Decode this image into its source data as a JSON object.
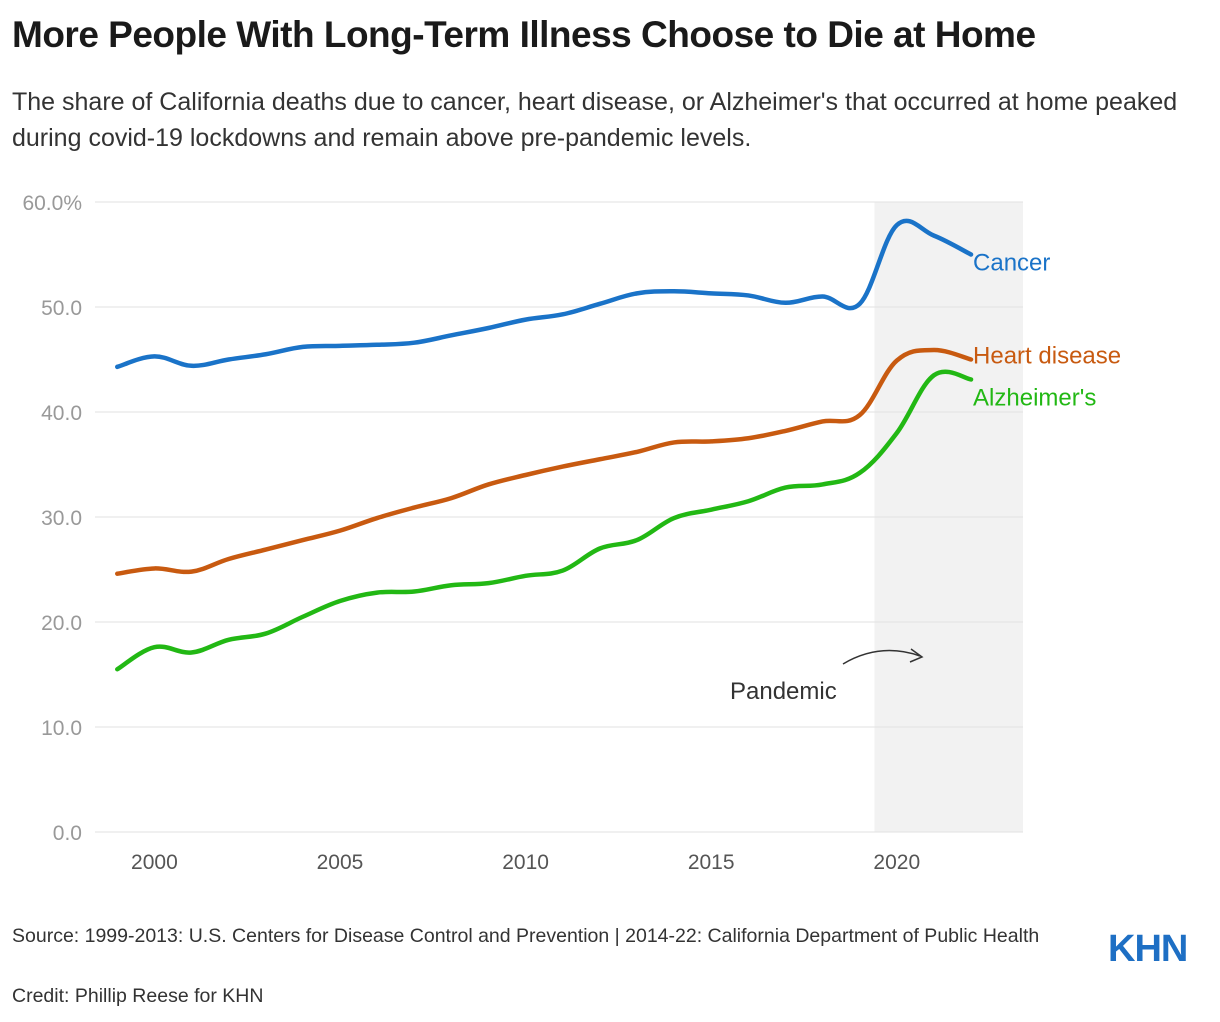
{
  "title": "More People With Long-Term Illness Choose to Die at Home",
  "subtitle": "The share of California deaths due to cancer, heart disease, or Alzheimer's that occurred at home peaked during covid-19 lockdowns and remain above pre-pandemic levels.",
  "source": "Source: 1999-2013: U.S. Centers for Disease Control and Prevention | 2014-22: California Department of Public Health",
  "credit": "Credit: Phillip Reese for KHN",
  "logo": "KHN",
  "colors": {
    "cancer": "#1a73c8",
    "heart": "#c85a10",
    "alzheimers": "#22b814",
    "shade": "#f2f2f2",
    "grid": "#e2e2e2"
  },
  "chart_data": {
    "type": "line",
    "title": "More People With Long-Term Illness Choose to Die at Home",
    "xlabel": "",
    "ylabel": "",
    "x": [
      1999,
      2000,
      2001,
      2002,
      2003,
      2004,
      2005,
      2006,
      2007,
      2008,
      2009,
      2010,
      2011,
      2012,
      2013,
      2014,
      2015,
      2016,
      2017,
      2018,
      2019,
      2020,
      2021,
      2022
    ],
    "xlim": [
      1998.4,
      2023.4
    ],
    "ylim": [
      0,
      60
    ],
    "yticks": [
      0,
      10,
      20,
      30,
      40,
      50,
      60
    ],
    "ytick_labels": [
      "0.0",
      "10.0",
      "20.0",
      "30.0",
      "40.0",
      "50.0",
      "60.0%"
    ],
    "xticks": [
      2000,
      2005,
      2010,
      2015,
      2020
    ],
    "xtick_labels": [
      "2000",
      "2005",
      "2010",
      "2015",
      "2020"
    ],
    "grid": true,
    "series": [
      {
        "key": "cancer",
        "name": "Cancer",
        "values": [
          44.3,
          45.3,
          44.4,
          45.0,
          45.5,
          46.2,
          46.3,
          46.4,
          46.6,
          47.3,
          48.0,
          48.8,
          49.3,
          50.3,
          51.3,
          51.5,
          51.3,
          51.1,
          50.4,
          51.0,
          50.3,
          57.8,
          56.8,
          55.0
        ]
      },
      {
        "key": "heart",
        "name": "Heart disease",
        "values": [
          24.6,
          25.1,
          24.8,
          26.0,
          26.9,
          27.8,
          28.7,
          29.9,
          30.9,
          31.8,
          33.1,
          34.0,
          34.8,
          35.5,
          36.2,
          37.1,
          37.2,
          37.5,
          38.2,
          39.1,
          39.7,
          44.9,
          45.9,
          45.0
        ]
      },
      {
        "key": "alzheimers",
        "name": "Alzheimer's",
        "values": [
          15.5,
          17.6,
          17.1,
          18.3,
          18.9,
          20.5,
          22.0,
          22.8,
          22.9,
          23.5,
          23.7,
          24.4,
          24.9,
          27.0,
          27.8,
          29.9,
          30.7,
          31.5,
          32.8,
          33.1,
          34.2,
          38.0,
          43.5,
          43.1
        ]
      }
    ],
    "annotations": [
      {
        "text": "Pandemic",
        "x_start": 2019.4,
        "x_end": 2023.4
      }
    ]
  }
}
